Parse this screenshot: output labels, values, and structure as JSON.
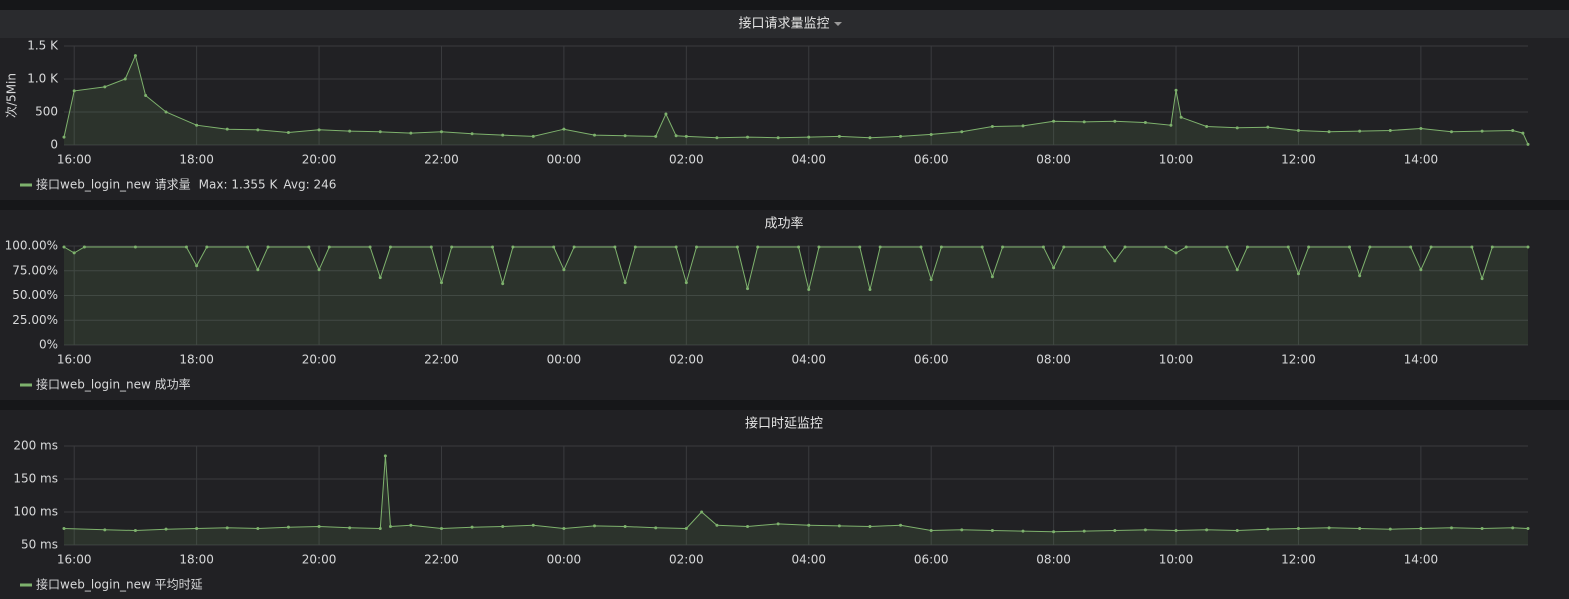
{
  "chart_data": [
    {
      "type": "line",
      "title": "接口请求量监控",
      "ylabel": "次/5Min",
      "xlim": [
        "15:50",
        "15:45"
      ],
      "xticks": [
        "16:00",
        "18:00",
        "20:00",
        "22:00",
        "00:00",
        "02:00",
        "04:00",
        "06:00",
        "08:00",
        "10:00",
        "12:00",
        "14:00"
      ],
      "ylim": [
        0,
        1500
      ],
      "yticks": [
        0,
        500,
        {
          "value": 1000,
          "label": "1.0 K"
        },
        {
          "value": 1500,
          "label": "1.5 K"
        }
      ],
      "grid": true,
      "x": [
        "15:50",
        "16:00",
        "16:30",
        "16:50",
        "17:00",
        "17:10",
        "17:30",
        "18:00",
        "18:30",
        "19:00",
        "19:30",
        "20:00",
        "20:30",
        "21:00",
        "21:30",
        "22:00",
        "22:30",
        "23:00",
        "23:30",
        "00:00",
        "00:30",
        "01:00",
        "01:30",
        "01:40",
        "01:50",
        "02:00",
        "02:30",
        "03:00",
        "03:30",
        "04:00",
        "04:30",
        "05:00",
        "05:30",
        "06:00",
        "06:30",
        "07:00",
        "07:30",
        "08:00",
        "08:30",
        "09:00",
        "09:30",
        "09:55",
        "10:00",
        "10:05",
        "10:30",
        "11:00",
        "11:30",
        "12:00",
        "12:30",
        "13:00",
        "13:30",
        "14:00",
        "14:30",
        "15:00",
        "15:30",
        "15:40",
        "15:45"
      ],
      "series": [
        {
          "name": "接口web_login_new 请求量",
          "color": "#7eb26d",
          "legend_stats": [
            "Max: 1.355 K",
            "Avg: 246"
          ],
          "values": [
            120,
            820,
            880,
            1000,
            1355,
            750,
            500,
            300,
            240,
            230,
            190,
            230,
            210,
            200,
            180,
            200,
            170,
            150,
            130,
            240,
            150,
            140,
            130,
            470,
            140,
            130,
            110,
            120,
            110,
            120,
            130,
            110,
            130,
            160,
            200,
            280,
            290,
            360,
            350,
            360,
            340,
            300,
            830,
            420,
            280,
            260,
            270,
            220,
            200,
            210,
            220,
            250,
            200,
            210,
            220,
            180,
            10
          ]
        }
      ]
    },
    {
      "type": "line",
      "title": "成功率",
      "xlim": [
        "15:50",
        "15:45"
      ],
      "xticks": [
        "16:00",
        "18:00",
        "20:00",
        "22:00",
        "00:00",
        "02:00",
        "04:00",
        "06:00",
        "08:00",
        "10:00",
        "12:00",
        "14:00"
      ],
      "ylim": [
        0,
        100
      ],
      "yticks": [
        {
          "value": 0,
          "label": "0%"
        },
        {
          "value": 25,
          "label": "25.00%"
        },
        {
          "value": 50,
          "label": "50.00%"
        },
        {
          "value": 75,
          "label": "75.00%"
        },
        {
          "value": 100,
          "label": "100.00%"
        }
      ],
      "grid": true,
      "x": [
        "15:50",
        "16:00",
        "16:10",
        "17:00",
        "17:50",
        "18:00",
        "18:10",
        "18:50",
        "19:00",
        "19:10",
        "19:50",
        "20:00",
        "20:10",
        "20:50",
        "21:00",
        "21:10",
        "21:50",
        "22:00",
        "22:10",
        "22:50",
        "23:00",
        "23:10",
        "23:50",
        "00:00",
        "00:10",
        "00:50",
        "01:00",
        "01:10",
        "01:50",
        "02:00",
        "02:10",
        "02:50",
        "03:00",
        "03:10",
        "03:50",
        "04:00",
        "04:10",
        "04:50",
        "05:00",
        "05:10",
        "05:50",
        "06:00",
        "06:10",
        "06:50",
        "07:00",
        "07:10",
        "07:50",
        "08:00",
        "08:10",
        "08:50",
        "09:00",
        "09:10",
        "09:50",
        "10:00",
        "10:10",
        "10:50",
        "11:00",
        "11:10",
        "11:50",
        "12:00",
        "12:10",
        "12:50",
        "13:00",
        "13:10",
        "13:50",
        "14:00",
        "14:10",
        "14:50",
        "15:00",
        "15:10",
        "15:45"
      ],
      "series": [
        {
          "name": "接口web_login_new 成功率",
          "color": "#7eb26d",
          "values": [
            99,
            93,
            99,
            99,
            99,
            80,
            99,
            99,
            76,
            99,
            99,
            76,
            99,
            99,
            68,
            99,
            99,
            63,
            99,
            99,
            62,
            99,
            99,
            76,
            99,
            99,
            63,
            99,
            99,
            63,
            99,
            99,
            57,
            99,
            99,
            56,
            99,
            99,
            56,
            99,
            99,
            66,
            99,
            99,
            69,
            99,
            99,
            78,
            99,
            99,
            85,
            99,
            99,
            93,
            99,
            99,
            76,
            99,
            99,
            72,
            99,
            99,
            70,
            99,
            99,
            76,
            99,
            99,
            67,
            99,
            99
          ]
        }
      ]
    },
    {
      "type": "line",
      "title": "接口时延监控",
      "xlim": [
        "15:50",
        "15:45"
      ],
      "xticks": [
        "16:00",
        "18:00",
        "20:00",
        "22:00",
        "00:00",
        "02:00",
        "04:00",
        "06:00",
        "08:00",
        "10:00",
        "12:00",
        "14:00"
      ],
      "ylim": [
        50,
        200
      ],
      "yticks": [
        {
          "value": 50,
          "label": "50 ms"
        },
        {
          "value": 100,
          "label": "100 ms"
        },
        {
          "value": 150,
          "label": "150 ms"
        },
        {
          "value": 200,
          "label": "200 ms"
        }
      ],
      "grid": true,
      "x": [
        "15:50",
        "16:30",
        "17:00",
        "17:30",
        "18:00",
        "18:30",
        "19:00",
        "19:30",
        "20:00",
        "20:30",
        "21:00",
        "21:05",
        "21:10",
        "21:30",
        "22:00",
        "22:30",
        "23:00",
        "23:30",
        "00:00",
        "00:30",
        "01:00",
        "01:30",
        "02:00",
        "02:15",
        "02:30",
        "03:00",
        "03:30",
        "04:00",
        "04:30",
        "05:00",
        "05:30",
        "06:00",
        "06:30",
        "07:00",
        "07:30",
        "08:00",
        "08:30",
        "09:00",
        "09:30",
        "10:00",
        "10:30",
        "11:00",
        "11:30",
        "12:00",
        "12:30",
        "13:00",
        "13:30",
        "14:00",
        "14:30",
        "15:00",
        "15:30",
        "15:45"
      ],
      "series": [
        {
          "name": "接口web_login_new 平均时延",
          "color": "#7eb26d",
          "values": [
            75,
            73,
            72,
            74,
            75,
            76,
            75,
            77,
            78,
            76,
            75,
            185,
            78,
            80,
            75,
            77,
            78,
            80,
            75,
            79,
            78,
            76,
            75,
            100,
            80,
            78,
            82,
            80,
            79,
            78,
            80,
            72,
            73,
            72,
            71,
            70,
            71,
            72,
            73,
            72,
            73,
            72,
            74,
            75,
            76,
            75,
            74,
            75,
            76,
            75,
            76,
            75
          ]
        }
      ]
    }
  ]
}
